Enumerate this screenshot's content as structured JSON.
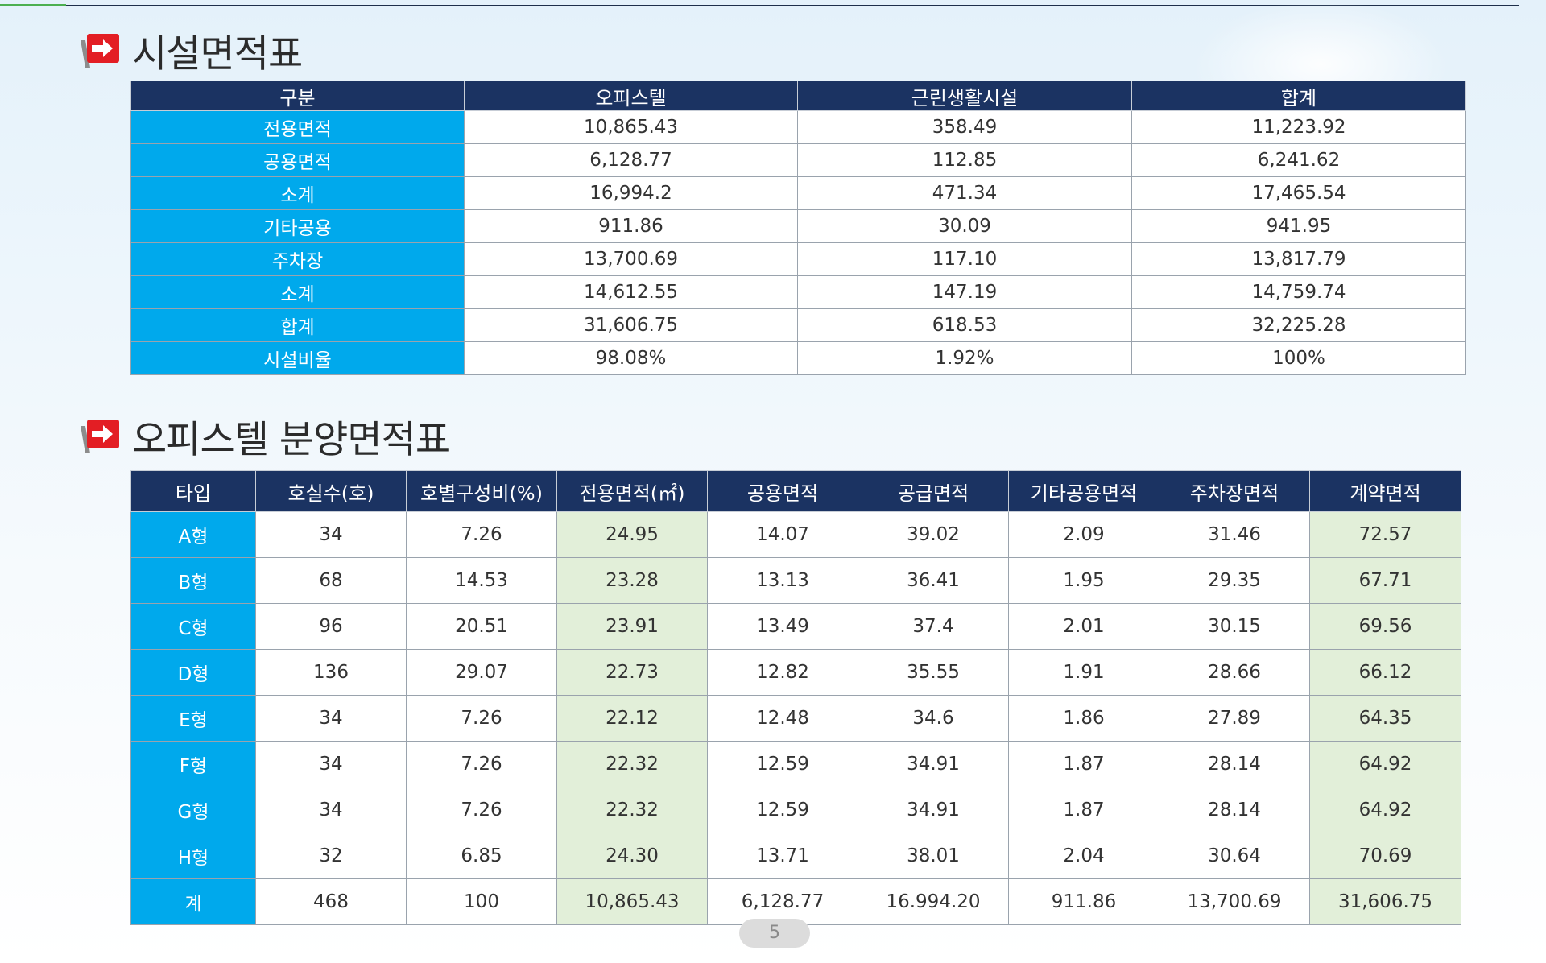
{
  "section1": {
    "title": "시설면적표",
    "headers": [
      "구분",
      "오피스텔",
      "근린생활시설",
      "합계"
    ],
    "rows": [
      [
        "전용면적",
        "10,865.43",
        "358.49",
        "11,223.92"
      ],
      [
        "공용면적",
        "6,128.77",
        "112.85",
        "6,241.62"
      ],
      [
        "소계",
        "16,994.2",
        "471.34",
        "17,465.54"
      ],
      [
        "기타공용",
        "911.86",
        "30.09",
        "941.95"
      ],
      [
        "주차장",
        "13,700.69",
        "117.10",
        "13,817.79"
      ],
      [
        "소계",
        "14,612.55",
        "147.19",
        "14,759.74"
      ],
      [
        "합계",
        "31,606.75",
        "618.53",
        "32,225.28"
      ],
      [
        "시설비율",
        "98.08%",
        "1.92%",
        "100%"
      ]
    ]
  },
  "section2": {
    "title": "오피스텔 분양면적표",
    "headers": [
      "타입",
      "호실수(호)",
      "호별구성비(%)",
      "전용면적(㎡)",
      "공용면적",
      "공급면적",
      "기타공용면적",
      "주차장면적",
      "계약면적"
    ],
    "rows": [
      [
        "A형",
        "34",
        "7.26",
        "24.95",
        "14.07",
        "39.02",
        "2.09",
        "31.46",
        "72.57"
      ],
      [
        "B형",
        "68",
        "14.53",
        "23.28",
        "13.13",
        "36.41",
        "1.95",
        "29.35",
        "67.71"
      ],
      [
        "C형",
        "96",
        "20.51",
        "23.91",
        "13.49",
        "37.4",
        "2.01",
        "30.15",
        "69.56"
      ],
      [
        "D형",
        "136",
        "29.07",
        "22.73",
        "12.82",
        "35.55",
        "1.91",
        "28.66",
        "66.12"
      ],
      [
        "E형",
        "34",
        "7.26",
        "22.12",
        "12.48",
        "34.6",
        "1.86",
        "27.89",
        "64.35"
      ],
      [
        "F형",
        "34",
        "7.26",
        "22.32",
        "12.59",
        "34.91",
        "1.87",
        "28.14",
        "64.92"
      ],
      [
        "G형",
        "34",
        "7.26",
        "22.32",
        "12.59",
        "34.91",
        "1.87",
        "28.14",
        "64.92"
      ],
      [
        "H형",
        "32",
        "6.85",
        "24.30",
        "13.71",
        "38.01",
        "2.04",
        "30.64",
        "70.69"
      ],
      [
        "계",
        "468",
        "100",
        "10,865.43",
        "6,128.77",
        "16.994.20",
        "911.86",
        "13,700.69",
        "31,606.75"
      ]
    ]
  },
  "page_number": "5",
  "colors": {
    "header_bg": "#1b3362",
    "rowhead_bg": "#00a9ec",
    "highlight_bg": "#e2efd9",
    "arrow_red": "#e31e24"
  }
}
